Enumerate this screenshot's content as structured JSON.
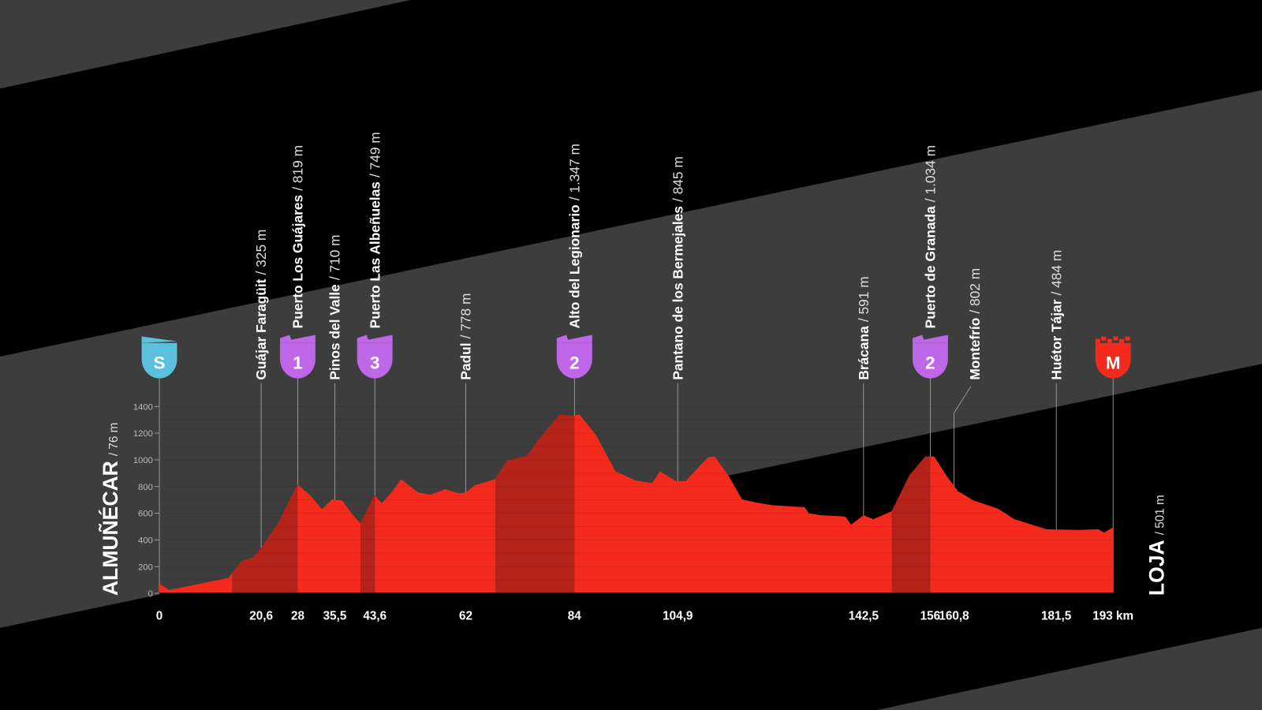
{
  "chart_data": {
    "type": "area",
    "xlabel": "",
    "ylabel": "",
    "x_unit": "km",
    "xlim": [
      0,
      193
    ],
    "ylim": [
      0,
      1400
    ],
    "y_ticks": [
      0,
      200,
      400,
      600,
      800,
      1000,
      1200,
      1400
    ],
    "x_ticks": [
      {
        "value": 0,
        "label": "0"
      },
      {
        "value": 20.6,
        "label": "20,6"
      },
      {
        "value": 28,
        "label": "28"
      },
      {
        "value": 35.5,
        "label": "35,5"
      },
      {
        "value": 43.6,
        "label": "43,6"
      },
      {
        "value": 62,
        "label": "62"
      },
      {
        "value": 84,
        "label": "84"
      },
      {
        "value": 104.9,
        "label": "104,9"
      },
      {
        "value": 142.5,
        "label": "142,5"
      },
      {
        "value": 156,
        "label": "156"
      },
      {
        "value": 160.8,
        "label": "160,8"
      },
      {
        "value": 181.5,
        "label": "181,5"
      },
      {
        "value": 193,
        "label": "193 km"
      }
    ],
    "profile": [
      [
        0,
        72
      ],
      [
        2,
        25
      ],
      [
        14,
        115
      ],
      [
        14.7,
        150
      ],
      [
        16.6,
        240
      ],
      [
        19,
        270
      ],
      [
        20.7,
        345
      ],
      [
        24,
        525
      ],
      [
        28,
        815
      ],
      [
        30.5,
        735
      ],
      [
        32.9,
        630
      ],
      [
        35,
        705
      ],
      [
        37,
        695
      ],
      [
        39.4,
        575
      ],
      [
        40.7,
        525
      ],
      [
        43.5,
        735
      ],
      [
        45,
        675
      ],
      [
        47.2,
        765
      ],
      [
        48.9,
        855
      ],
      [
        52.4,
        755
      ],
      [
        54.9,
        740
      ],
      [
        57.8,
        780
      ],
      [
        60.6,
        750
      ],
      [
        62,
        755
      ],
      [
        63.8,
        810
      ],
      [
        67.9,
        855
      ],
      [
        70.4,
        995
      ],
      [
        74.4,
        1030
      ],
      [
        76.9,
        1160
      ],
      [
        81,
        1340
      ],
      [
        83.4,
        1330
      ],
      [
        85,
        1340
      ],
      [
        88.3,
        1190
      ],
      [
        92.3,
        915
      ],
      [
        96.4,
        845
      ],
      [
        99.7,
        825
      ],
      [
        101.3,
        915
      ],
      [
        104.6,
        840
      ],
      [
        106.5,
        840
      ],
      [
        111,
        1020
      ],
      [
        112.4,
        1025
      ],
      [
        115.1,
        885
      ],
      [
        117.9,
        705
      ],
      [
        120.8,
        680
      ],
      [
        124,
        660
      ],
      [
        130.6,
        645
      ],
      [
        131.4,
        600
      ],
      [
        133.9,
        585
      ],
      [
        138.8,
        575
      ],
      [
        140,
        515
      ],
      [
        142.5,
        585
      ],
      [
        144.5,
        555
      ],
      [
        148.2,
        615
      ],
      [
        151.8,
        885
      ],
      [
        155,
        1025
      ],
      [
        156.8,
        1025
      ],
      [
        159.2,
        885
      ],
      [
        161.6,
        765
      ],
      [
        164.8,
        695
      ],
      [
        169.7,
        635
      ],
      [
        173,
        555
      ],
      [
        179.5,
        480
      ],
      [
        186,
        475
      ],
      [
        190,
        480
      ],
      [
        191.2,
        455
      ],
      [
        193,
        495
      ]
    ],
    "climb_segments": [
      [
        14.7,
        28
      ],
      [
        40.7,
        43.6
      ],
      [
        68,
        84
      ],
      [
        148.2,
        156
      ]
    ],
    "start": {
      "name": "ALMUÑÉCAR",
      "elevation": "/ 76 m"
    },
    "finish": {
      "name": "LOJA",
      "elevation": "/ 501 m"
    },
    "points": [
      {
        "km": 20.6,
        "name": "Guájar Faragüit",
        "elevation": "/ 325 m",
        "badge": ""
      },
      {
        "km": 28,
        "name": "Puerto Los Guájares",
        "elevation": "/ 819 m",
        "badge": "1"
      },
      {
        "km": 35.5,
        "name": "Pinos del Valle",
        "elevation": "/ 710 m",
        "badge": ""
      },
      {
        "km": 43.6,
        "name": "Puerto Las Albeñuelas",
        "elevation": "/ 749 m",
        "badge": "3"
      },
      {
        "km": 62,
        "name": "Padul",
        "elevation": "/ 778 m",
        "badge": ""
      },
      {
        "km": 84,
        "name": "Alto del Legionario",
        "elevation": "/ 1.347 m",
        "badge": "2"
      },
      {
        "km": 104.9,
        "name": "Pantano de los Bermejales",
        "elevation": "/ 845 m",
        "badge": ""
      },
      {
        "km": 142.5,
        "name": "Brácana",
        "elevation": "/ 591 m",
        "badge": ""
      },
      {
        "km": 156,
        "name": "Puerto de Granada",
        "elevation": "/ 1.034 m",
        "badge": "2"
      },
      {
        "km": 160.8,
        "name": "Montefrío",
        "elevation": "/ 802 m",
        "badge": ""
      },
      {
        "km": 181.5,
        "name": "Huétor Tájar",
        "elevation": "/ 484 m",
        "badge": ""
      }
    ],
    "start_badge": "S",
    "finish_badge": "M",
    "colors": {
      "profile": "#f42a1d",
      "climb": "#b3231a",
      "band_gray": "#3d3d3d",
      "background": "#000000",
      "start_badge": "#5bc0de",
      "climb_badge": "#c066e8",
      "finish_badge": "#f42a1d"
    }
  }
}
